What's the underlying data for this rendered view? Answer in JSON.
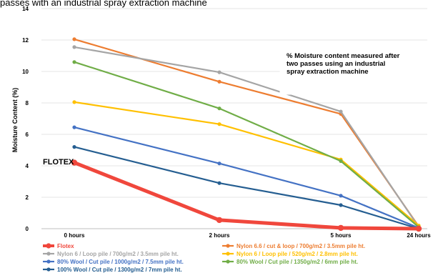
{
  "header_partial_text": "passes with an industrial spray extraction machine",
  "chart_data": {
    "type": "line",
    "title": "",
    "xlabel": "",
    "ylabel": "Moisture Content (%)",
    "categories": [
      "0 hours",
      "2 hours",
      "5 hours",
      "24 hours"
    ],
    "ylim": [
      0,
      14
    ],
    "yticks": [
      0,
      2,
      4,
      6,
      8,
      10,
      12,
      14
    ],
    "grid": true,
    "legend_position": "bottom",
    "annotation": [
      "% Moisture content measured after",
      "two passes using an industrial",
      "spray extraction machine"
    ],
    "series_label": "FLOTEX",
    "series": [
      {
        "name": "Flotex",
        "color": "#f0473c",
        "highlight": true,
        "values": [
          4.2,
          0.55,
          0.05,
          0.0
        ]
      },
      {
        "name": "Nylon 6.6 / cut & loop / 700g/m2 / 3.5mm pile ht.",
        "color": "#ed7d31",
        "values": [
          12.05,
          9.35,
          7.3,
          0.15
        ]
      },
      {
        "name": "Nylon 6 / Loop pile / 700g/m2 / 3.5mm pile ht.",
        "color": "#a5a5a5",
        "values": [
          11.55,
          9.95,
          7.45,
          0.1
        ]
      },
      {
        "name": "Nylon 6 / Loop pile / 520g/m2 / 2.8mm pile ht.",
        "color": "#ffc000",
        "values": [
          8.05,
          6.65,
          4.4,
          0.2
        ]
      },
      {
        "name": "80% Wool / Cut pile / 1000g/m2 / 7.5mm pile ht.",
        "color": "#4472c4",
        "values": [
          6.45,
          4.15,
          2.1,
          0.05
        ]
      },
      {
        "name": "80% Wool / Cut pile / 1350g/m2 / 6mm pile ht.",
        "color": "#70ad47",
        "values": [
          10.6,
          7.65,
          4.3,
          0.1
        ]
      },
      {
        "name": "100% Wool / Cut pile / 1300g/m2 / 7mm pile ht.",
        "color": "#255e91",
        "values": [
          5.2,
          2.9,
          1.5,
          0.0
        ]
      }
    ]
  }
}
